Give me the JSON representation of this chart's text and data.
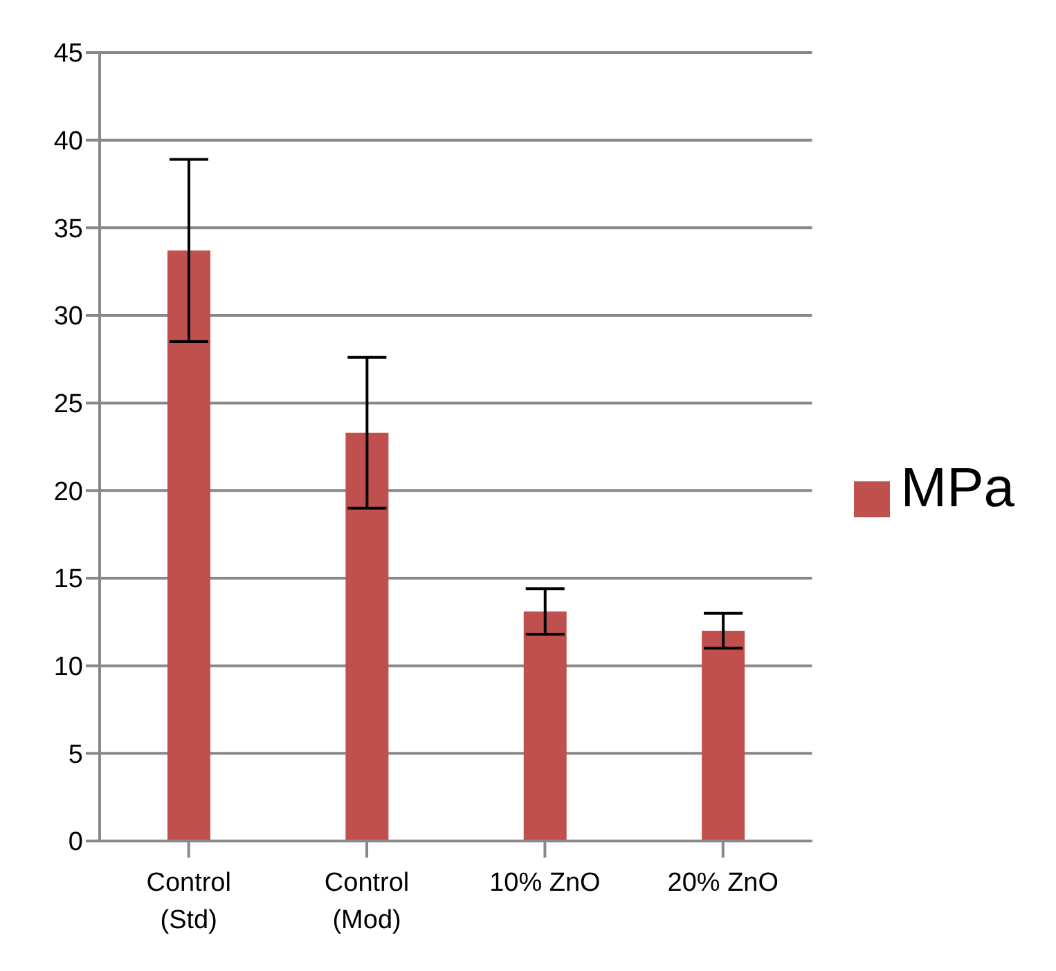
{
  "chart_data": {
    "type": "bar",
    "categories": [
      "Control\n(Std)",
      "Control\n(Mod)",
      "10% ZnO",
      "20% ZnO"
    ],
    "series": [
      {
        "name": "MPa",
        "color": "#c0504d",
        "values": [
          33.7,
          23.3,
          13.1,
          12.0
        ],
        "errors": [
          5.2,
          4.3,
          1.3,
          1.0
        ]
      }
    ],
    "ylim": [
      0,
      45
    ],
    "yticks": [
      0,
      5,
      10,
      15,
      20,
      25,
      30,
      35,
      40,
      45
    ],
    "grid": "y",
    "legend": "right"
  }
}
